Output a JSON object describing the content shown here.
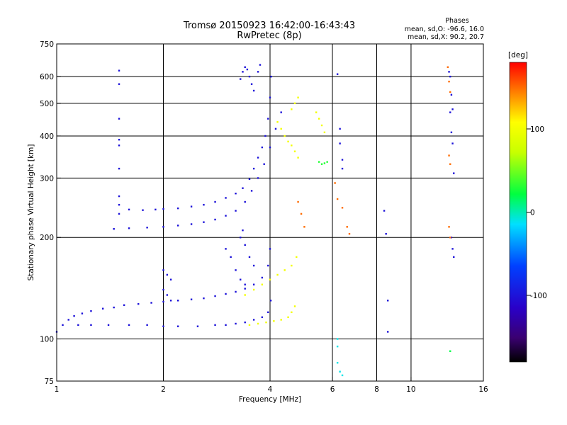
{
  "chart_data": {
    "type": "scatter",
    "title": "Tromsø 20150923 16:42:00-16:43:43",
    "subtitle": "RwPretec (8p)",
    "xlabel": "Frequency [MHz]",
    "ylabel": "Stationary phase Virtual Height [km]",
    "xscale": "log",
    "yscale": "log",
    "xlim": [
      1,
      16
    ],
    "ylim": [
      75,
      750
    ],
    "xticks": [
      1,
      2,
      4,
      6,
      8,
      10,
      16
    ],
    "xtick_labels": [
      "1",
      "2",
      "4",
      "6",
      "8",
      "10",
      "16"
    ],
    "x_gridlines": [
      2,
      4,
      6,
      8,
      10
    ],
    "yticks": [
      75,
      100,
      200,
      300,
      400,
      500,
      600,
      750
    ],
    "ytick_labels": [
      "75",
      "100",
      "200",
      "300",
      "400",
      "500",
      "600",
      "750"
    ],
    "y_gridlines": [
      100,
      200,
      300,
      400,
      500,
      600
    ],
    "grid": true,
    "phase_stats": {
      "heading": "Phases",
      "line_o": "mean, sd,O: -96.6, 16.0",
      "line_x": "mean, sd,X:  90.2, 20.7"
    },
    "colorbar": {
      "label": "[deg]",
      "range": [
        -180,
        180
      ],
      "ticks": [
        100,
        0,
        -100
      ],
      "tick_labels": [
        "100",
        "0",
        "-100"
      ],
      "colormap": "rainbow (black-violet-blue-cyan-green-yellow-red)"
    },
    "traces": [
      {
        "phase": -100,
        "points": [
          [
            1.0,
            105
          ],
          [
            1.04,
            110
          ],
          [
            1.08,
            114
          ],
          [
            1.12,
            117
          ],
          [
            1.18,
            119
          ],
          [
            1.25,
            121
          ],
          [
            1.35,
            123
          ],
          [
            1.45,
            124
          ],
          [
            1.55,
            126
          ],
          [
            1.7,
            127
          ],
          [
            1.85,
            128
          ],
          [
            2.0,
            129
          ],
          [
            2.2,
            130
          ],
          [
            2.4,
            131
          ],
          [
            2.6,
            132
          ],
          [
            2.8,
            134
          ],
          [
            3.0,
            136
          ],
          [
            3.2,
            138
          ],
          [
            3.4,
            141
          ],
          [
            3.6,
            145
          ],
          [
            3.8,
            152
          ],
          [
            3.95,
            165
          ],
          [
            4.0,
            185
          ]
        ]
      },
      {
        "phase": -100,
        "points": [
          [
            1.15,
            110
          ],
          [
            1.25,
            110
          ],
          [
            1.4,
            110
          ],
          [
            1.6,
            110
          ],
          [
            1.8,
            110
          ],
          [
            2.0,
            109
          ],
          [
            2.2,
            109
          ],
          [
            2.5,
            109
          ],
          [
            2.8,
            110
          ],
          [
            3.0,
            110
          ],
          [
            3.2,
            111
          ],
          [
            3.4,
            112
          ],
          [
            3.6,
            114
          ],
          [
            3.8,
            116
          ],
          [
            3.95,
            120
          ],
          [
            4.02,
            130
          ]
        ]
      },
      {
        "phase": -100,
        "points": [
          [
            1.6,
            242
          ],
          [
            1.75,
            241
          ],
          [
            1.9,
            242
          ],
          [
            2.0,
            243
          ],
          [
            2.2,
            244
          ],
          [
            2.4,
            247
          ],
          [
            2.6,
            250
          ],
          [
            2.8,
            255
          ],
          [
            3.0,
            262
          ],
          [
            3.2,
            270
          ],
          [
            3.35,
            280
          ],
          [
            3.5,
            298
          ],
          [
            3.6,
            320
          ],
          [
            3.7,
            345
          ],
          [
            3.8,
            370
          ],
          [
            3.88,
            400
          ],
          [
            3.95,
            450
          ],
          [
            4.0,
            520
          ],
          [
            4.03,
            600
          ]
        ]
      },
      {
        "phase": -100,
        "points": [
          [
            1.45,
            212
          ],
          [
            1.6,
            213
          ],
          [
            1.8,
            214
          ],
          [
            2.0,
            215
          ],
          [
            2.2,
            217
          ],
          [
            2.4,
            219
          ],
          [
            2.6,
            222
          ],
          [
            2.8,
            226
          ],
          [
            3.0,
            232
          ],
          [
            3.2,
            240
          ],
          [
            3.4,
            255
          ],
          [
            3.55,
            275
          ],
          [
            3.7,
            300
          ],
          [
            3.85,
            330
          ],
          [
            4.0,
            370
          ],
          [
            4.15,
            420
          ],
          [
            4.3,
            470
          ]
        ]
      },
      {
        "phase": -100,
        "points": [
          [
            3.3,
            590
          ],
          [
            3.35,
            620
          ],
          [
            3.4,
            640
          ],
          [
            3.45,
            630
          ],
          [
            3.5,
            600
          ],
          [
            3.55,
            570
          ],
          [
            3.6,
            545
          ],
          [
            3.7,
            620
          ],
          [
            3.75,
            650
          ]
        ]
      },
      {
        "phase": -100,
        "points": [
          [
            1.5,
            625
          ],
          [
            1.5,
            570
          ],
          [
            1.5,
            450
          ],
          [
            1.5,
            390
          ],
          [
            1.5,
            375
          ],
          [
            1.5,
            320
          ],
          [
            1.5,
            265
          ],
          [
            1.5,
            250
          ],
          [
            1.5,
            235
          ]
        ]
      },
      {
        "phase": -100,
        "points": [
          [
            2.0,
            160
          ],
          [
            2.05,
            155
          ],
          [
            2.1,
            150
          ],
          [
            2.0,
            140
          ],
          [
            2.05,
            135
          ],
          [
            2.1,
            130
          ],
          [
            3.0,
            185
          ],
          [
            3.1,
            175
          ],
          [
            3.2,
            160
          ],
          [
            3.3,
            150
          ],
          [
            3.4,
            145
          ],
          [
            3.3,
            200
          ],
          [
            3.35,
            210
          ],
          [
            3.4,
            190
          ],
          [
            3.5,
            175
          ],
          [
            3.6,
            165
          ]
        ]
      },
      {
        "phase": 100,
        "points": [
          [
            3.5,
            110
          ],
          [
            3.7,
            111
          ],
          [
            3.9,
            112
          ],
          [
            4.1,
            113
          ],
          [
            4.3,
            114
          ],
          [
            4.5,
            116
          ],
          [
            4.6,
            120
          ],
          [
            4.7,
            125
          ]
        ]
      },
      {
        "phase": 100,
        "points": [
          [
            3.4,
            135
          ],
          [
            3.6,
            140
          ],
          [
            3.8,
            145
          ],
          [
            4.0,
            150
          ],
          [
            4.2,
            155
          ],
          [
            4.4,
            160
          ],
          [
            4.6,
            165
          ],
          [
            4.75,
            175
          ]
        ]
      },
      {
        "phase": 100,
        "points": [
          [
            4.2,
            440
          ],
          [
            4.3,
            420
          ],
          [
            4.4,
            400
          ],
          [
            4.5,
            385
          ],
          [
            4.6,
            375
          ],
          [
            4.7,
            360
          ],
          [
            4.8,
            345
          ],
          [
            4.6,
            480
          ],
          [
            4.7,
            500
          ],
          [
            4.8,
            520
          ]
        ]
      },
      {
        "phase": 100,
        "points": [
          [
            5.4,
            470
          ],
          [
            5.5,
            450
          ],
          [
            5.6,
            430
          ],
          [
            5.7,
            410
          ]
        ]
      },
      {
        "phase": 30,
        "points": [
          [
            5.5,
            335
          ],
          [
            5.6,
            330
          ],
          [
            5.7,
            332
          ],
          [
            5.8,
            335
          ]
        ]
      },
      {
        "phase": 150,
        "points": [
          [
            4.8,
            255
          ],
          [
            4.9,
            235
          ],
          [
            5.0,
            215
          ],
          [
            6.1,
            290
          ],
          [
            6.2,
            260
          ],
          [
            6.4,
            245
          ],
          [
            6.6,
            215
          ],
          [
            6.7,
            205
          ]
        ]
      },
      {
        "phase": -10,
        "points": [
          [
            6.2,
            100
          ],
          [
            6.2,
            95
          ],
          [
            6.2,
            85
          ],
          [
            6.3,
            80
          ],
          [
            6.4,
            78
          ]
        ]
      },
      {
        "phase": -100,
        "points": [
          [
            6.2,
            610
          ],
          [
            6.3,
            420
          ],
          [
            6.3,
            380
          ],
          [
            6.4,
            340
          ],
          [
            6.4,
            320
          ]
        ]
      },
      {
        "phase": -100,
        "points": [
          [
            8.4,
            240
          ],
          [
            8.5,
            205
          ],
          [
            8.6,
            130
          ],
          [
            8.6,
            105
          ]
        ]
      },
      {
        "phase": -100,
        "points": [
          [
            12.8,
            620
          ],
          [
            12.9,
            600
          ],
          [
            13.0,
            530
          ],
          [
            13.1,
            480
          ],
          [
            12.9,
            470
          ],
          [
            13.0,
            410
          ],
          [
            13.1,
            380
          ],
          [
            13.2,
            310
          ],
          [
            13.0,
            200
          ],
          [
            13.1,
            185
          ],
          [
            13.2,
            175
          ]
        ]
      },
      {
        "phase": 150,
        "points": [
          [
            12.7,
            640
          ],
          [
            12.8,
            580
          ],
          [
            12.9,
            540
          ],
          [
            12.8,
            350
          ],
          [
            12.9,
            330
          ],
          [
            12.8,
            215
          ],
          [
            12.9,
            200
          ]
        ]
      },
      {
        "phase": 20,
        "points": [
          [
            12.9,
            92
          ]
        ]
      }
    ]
  }
}
